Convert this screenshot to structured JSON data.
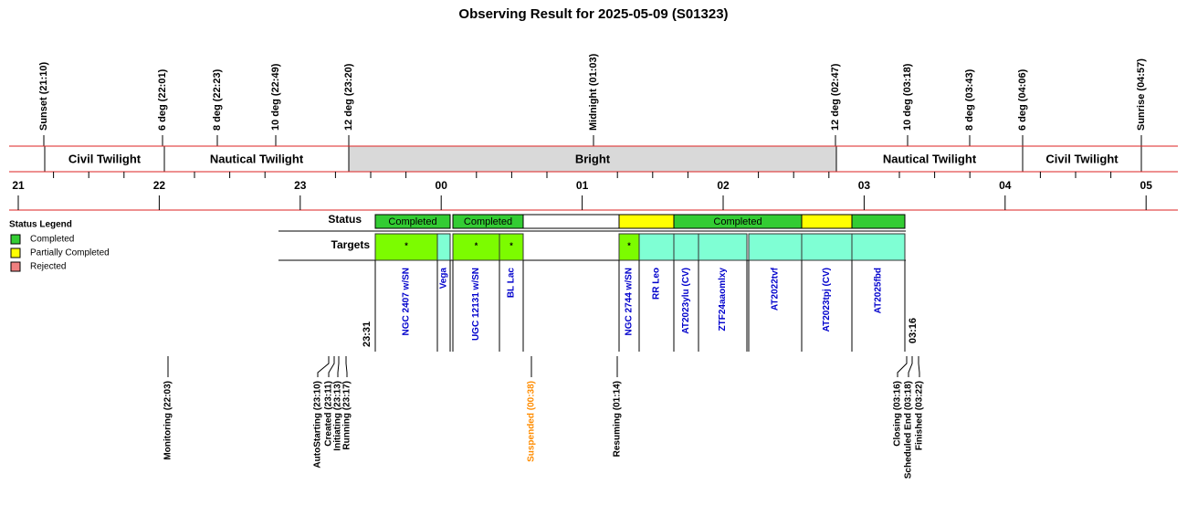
{
  "title": "Observing Result for 2025-05-09 (S01323)",
  "sun_markers": [
    "Sunset (21:10)",
    "6 deg (22:01)",
    "8 deg (22:23)",
    "10 deg (22:49)",
    "12 deg (23:20)",
    "Midnight (01:03)",
    "12 deg (02:47)",
    "10 deg (03:18)",
    "8 deg (03:43)",
    "6 deg (04:06)",
    "Sunrise (04:57)"
  ],
  "twilight_bands": [
    {
      "label": "Civil Twilight",
      "color": "#ffffff"
    },
    {
      "label": "Nautical Twilight",
      "color": "#ffffff"
    },
    {
      "label": "Bright",
      "color": "#d9d9d9"
    },
    {
      "label": "Nautical Twilight",
      "color": "#ffffff"
    },
    {
      "label": "Civil Twilight",
      "color": "#ffffff"
    }
  ],
  "hours": [
    "21",
    "22",
    "23",
    "00",
    "01",
    "02",
    "03",
    "04",
    "05"
  ],
  "legend": {
    "title": "Status Legend",
    "items": [
      {
        "label": "Completed",
        "color": "#33cc33"
      },
      {
        "label": "Partially Completed",
        "color": "#ffff00"
      },
      {
        "label": "Rejected",
        "color": "#f08080"
      }
    ]
  },
  "status_row": {
    "label": "Status",
    "segments": [
      {
        "label": "Completed",
        "color": "#33cc33"
      },
      {
        "label": "Completed",
        "color": "#33cc33"
      },
      {
        "color": "#ffffff"
      },
      {
        "color": "#ffff00"
      },
      {
        "label": "Completed",
        "color": "#33cc33"
      },
      {
        "color": "#ffff00"
      },
      {
        "color": "#33cc33"
      }
    ]
  },
  "targets_row": {
    "label": "Targets",
    "targets": [
      {
        "name": "NGC 2407 w/SN",
        "color": "#7cfc00",
        "mark": "*"
      },
      {
        "name": "Vega",
        "color": "#7fffd4"
      },
      {
        "name": "UGC 12131 w/SN",
        "color": "#7cfc00",
        "mark": "*"
      },
      {
        "name": "BL Lac",
        "color": "#7cfc00",
        "mark": "*"
      },
      {
        "name": "NGC 2744 w/SN",
        "color": "#7cfc00",
        "mark": "*"
      },
      {
        "name": "RR Leo",
        "color": "#7fffd4"
      },
      {
        "name": "AT2023ylu (CV)",
        "color": "#7fffd4"
      },
      {
        "name": "ZTF24aaomlxy",
        "color": "#7fffd4"
      },
      {
        "name": "AT2022tvf",
        "color": "#7fffd4"
      },
      {
        "name": "AT2023tpj (CV)",
        "color": "#7fffd4"
      },
      {
        "name": "AT2025fbd",
        "color": "#7fffd4"
      }
    ]
  },
  "start_time": "23:31",
  "end_time": "03:16",
  "events": [
    {
      "label": "Monitoring (22:03)",
      "color": "#000000"
    },
    {
      "label": "AutoStarting (23:10)",
      "color": "#000000"
    },
    {
      "label": "Created (23:11)",
      "color": "#000000"
    },
    {
      "label": "Initiating (23:13)",
      "color": "#000000"
    },
    {
      "label": "Running (23:17)",
      "color": "#000000"
    },
    {
      "label": "Suspended (00:38)",
      "color": "#ff8c00"
    },
    {
      "label": "Resuming (01:14)",
      "color": "#000000"
    },
    {
      "label": "Closing (03:16)",
      "color": "#000000"
    },
    {
      "label": "Scheduled End (03:18)",
      "color": "#000000"
    },
    {
      "label": "Finished (03:22)",
      "color": "#000000"
    }
  ]
}
